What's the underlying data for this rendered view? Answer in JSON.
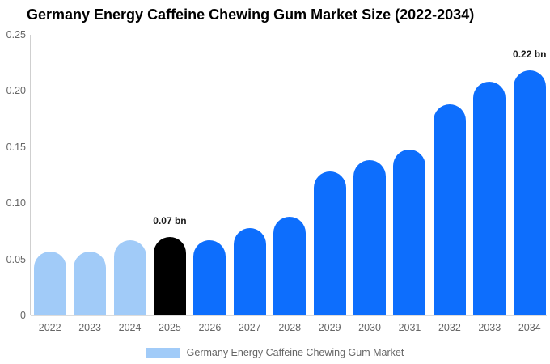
{
  "title": "Germany Energy Caffeine Chewing Gum Market Size (2022-2034)",
  "legend": {
    "label": "Germany Energy Caffeine Chewing Gum Market",
    "swatch_color": "#a1cbf8"
  },
  "colors": {
    "historical_bar": "#a1cbf8",
    "highlight_bar": "#000000",
    "forecast_bar": "#0d6efd",
    "axis_line": "#cfcfcf",
    "baseline": "#dcdcdc",
    "tick_text": "#666666",
    "annotation_text": "#1a1a1a",
    "title_text": "#000000",
    "background": "#ffffff"
  },
  "chart_data": {
    "type": "bar",
    "title": "Germany Energy Caffeine Chewing Gum Market Size (2022-2034)",
    "xlabel": "",
    "ylabel": "",
    "unit": "bn",
    "categories": [
      "2022",
      "2023",
      "2024",
      "2025",
      "2026",
      "2027",
      "2028",
      "2029",
      "2030",
      "2031",
      "2032",
      "2033",
      "2034"
    ],
    "values": [
      0.057,
      0.057,
      0.067,
      0.07,
      0.067,
      0.078,
      0.088,
      0.128,
      0.138,
      0.148,
      0.188,
      0.208,
      0.218
    ],
    "bar_colors": [
      "#a1cbf8",
      "#a1cbf8",
      "#a1cbf8",
      "#000000",
      "#0d6efd",
      "#0d6efd",
      "#0d6efd",
      "#0d6efd",
      "#0d6efd",
      "#0d6efd",
      "#0d6efd",
      "#0d6efd",
      "#0d6efd"
    ],
    "ylim": [
      0,
      0.25
    ],
    "yticks": [
      "0",
      "0.05",
      "0.10",
      "0.15",
      "0.20",
      "0.25"
    ],
    "ytick_values": [
      0,
      0.05,
      0.1,
      0.15,
      0.2,
      0.25
    ],
    "grid": false,
    "legend_position": "bottom",
    "annotations": [
      {
        "category": "2025",
        "text": "0.07 bn"
      },
      {
        "category": "2034",
        "text": "0.22 bn"
      }
    ]
  }
}
